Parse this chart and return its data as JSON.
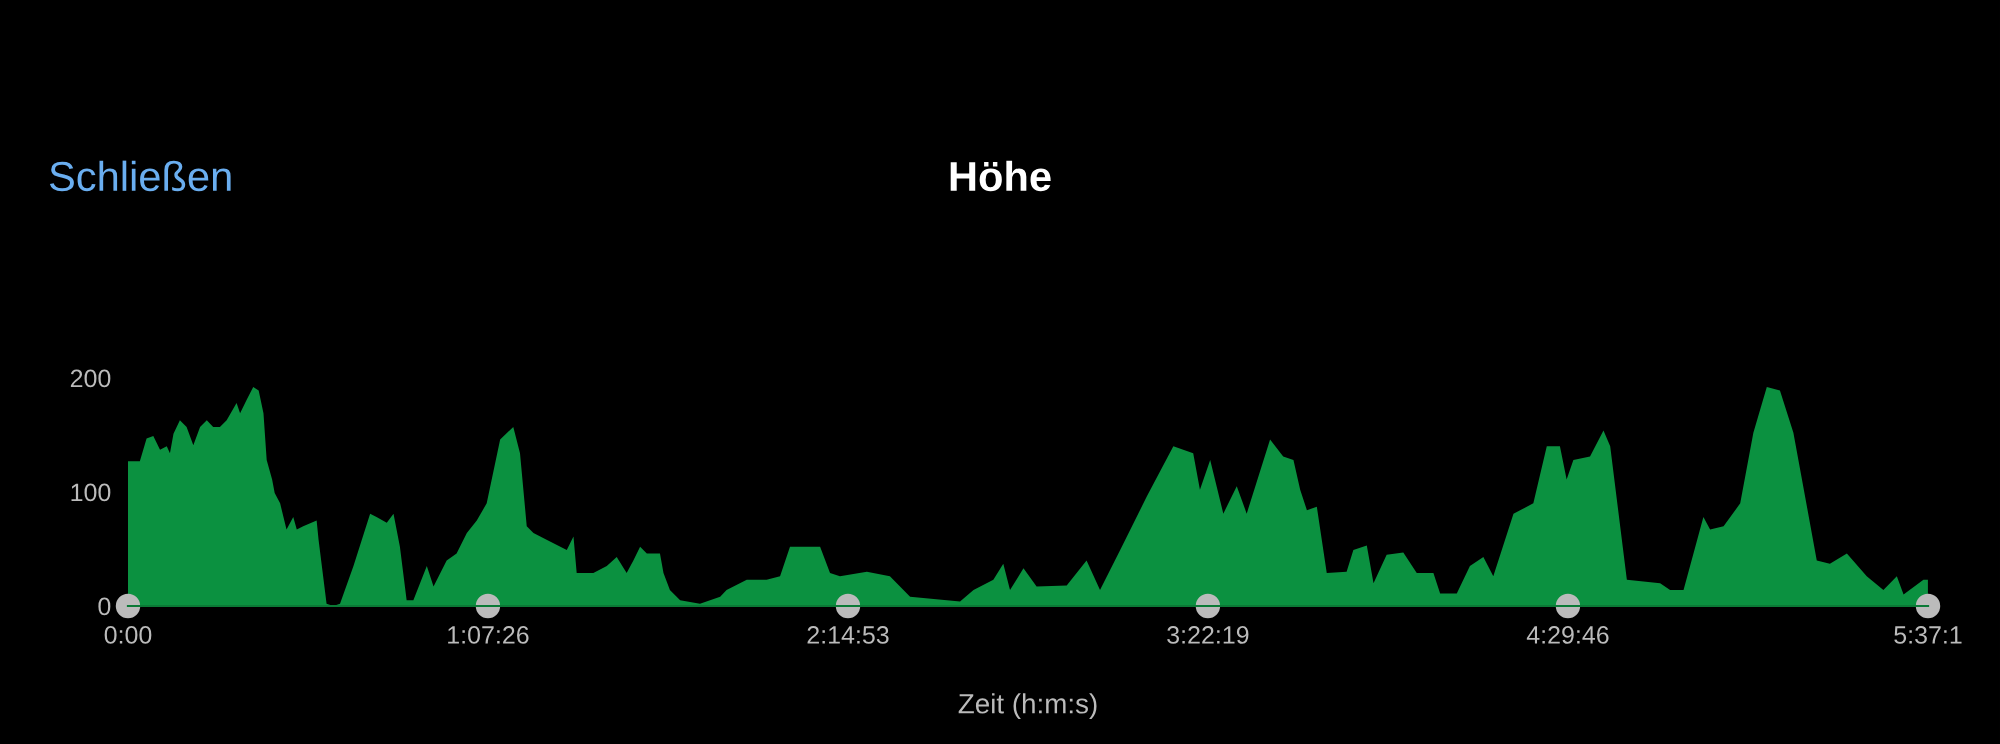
{
  "chart_data": {
    "type": "area",
    "title": "Höhe",
    "xlabel": "Zeit (h:m:s)",
    "annotations": [
      "Schließen"
    ],
    "x": [
      0.0,
      0.037,
      0.058,
      0.079,
      0.1,
      0.121,
      0.131,
      0.142,
      0.162,
      0.183,
      0.204,
      0.225,
      0.246,
      0.266,
      0.287,
      0.308,
      0.339,
      0.35,
      0.371,
      0.391,
      0.408,
      0.423,
      0.433,
      0.45,
      0.458,
      0.475,
      0.495,
      0.516,
      0.527,
      0.547,
      0.589,
      0.595,
      0.62,
      0.641,
      0.662,
      0.704,
      0.756,
      0.776,
      0.808,
      0.829,
      0.849,
      0.87,
      0.891,
      0.933,
      0.954,
      0.995,
      1.026,
      1.058,
      1.089,
      1.12,
      1.162,
      1.203,
      1.224,
      1.245,
      1.266,
      1.307,
      1.37,
      1.391,
      1.401,
      1.453,
      1.495,
      1.526,
      1.557,
      1.578,
      1.599,
      1.62,
      1.661,
      1.672,
      1.692,
      1.724,
      1.786,
      1.849,
      1.869,
      1.932,
      1.994,
      2.036,
      2.067,
      2.161,
      2.192,
      2.223,
      2.307,
      2.379,
      2.442,
      2.598,
      2.64,
      2.702,
      2.733,
      2.754,
      2.796,
      2.837,
      2.931,
      2.993,
      3.035,
      3.098,
      3.181,
      3.264,
      3.326,
      3.347,
      3.379,
      3.42,
      3.462,
      3.493,
      3.566,
      3.607,
      3.639,
      3.66,
      3.681,
      3.712,
      3.743,
      3.805,
      3.826,
      3.868,
      3.889,
      3.93,
      3.982,
      4.024,
      4.076,
      4.097,
      4.149,
      4.19,
      4.232,
      4.263,
      4.326,
      4.388,
      4.43,
      4.471,
      4.492,
      4.513,
      4.565,
      4.607,
      4.628,
      4.68,
      4.784,
      4.815,
      4.857,
      4.919,
      4.94,
      4.982,
      5.034,
      5.075,
      5.117,
      5.158,
      5.2,
      5.273,
      5.314,
      5.367,
      5.429,
      5.481,
      5.523,
      5.544,
      5.606,
      5.62
    ],
    "series": [
      {
        "color": "#0b9140",
        "values": [
          127,
          127,
          147,
          149,
          137,
          140,
          134,
          151,
          163,
          157,
          141,
          157,
          163,
          157,
          157,
          163,
          178,
          169,
          181,
          192,
          189,
          169,
          128,
          111,
          99,
          90,
          67,
          78,
          67,
          70,
          75,
          58,
          2,
          0,
          2,
          35,
          81,
          78,
          73,
          81,
          52,
          5,
          5,
          35,
          17,
          40,
          46,
          64,
          75,
          90,
          146,
          157,
          134,
          70,
          64,
          58,
          49,
          61,
          29,
          29,
          35,
          43,
          29,
          40,
          52,
          46,
          46,
          29,
          14,
          5,
          2,
          8,
          14,
          23,
          23,
          26,
          52,
          52,
          29,
          26,
          30,
          26,
          8,
          4,
          14,
          23,
          37,
          14,
          33,
          17,
          18,
          40,
          14,
          49,
          96,
          140,
          134,
          102,
          128,
          81,
          105,
          81,
          146,
          131,
          128,
          102,
          84,
          87,
          29,
          30,
          49,
          53,
          20,
          45,
          47,
          29,
          29,
          11,
          11,
          35,
          43,
          26,
          81,
          90,
          140,
          140,
          111,
          128,
          131,
          154,
          140,
          23,
          20,
          14,
          14,
          78,
          67,
          70,
          90,
          152,
          192,
          189,
          152,
          40,
          37,
          46,
          26,
          14,
          26,
          10,
          23,
          23
        ]
      }
    ],
    "xlim": [
      0,
      5.6203
    ],
    "xticks": [
      {
        "value": 0,
        "label": "0:00"
      },
      {
        "value": 1.1239,
        "label": "1:07:26"
      },
      {
        "value": 2.2481,
        "label": "2:14:53"
      },
      {
        "value": 3.3719,
        "label": "3:22:19"
      },
      {
        "value": 4.4961,
        "label": "4:29:46"
      },
      {
        "value": 5.6203,
        "label": "5:37:1"
      }
    ],
    "ylim": [
      0,
      200
    ],
    "yticks": [
      0,
      100,
      200
    ],
    "grid": false,
    "legend": false
  }
}
